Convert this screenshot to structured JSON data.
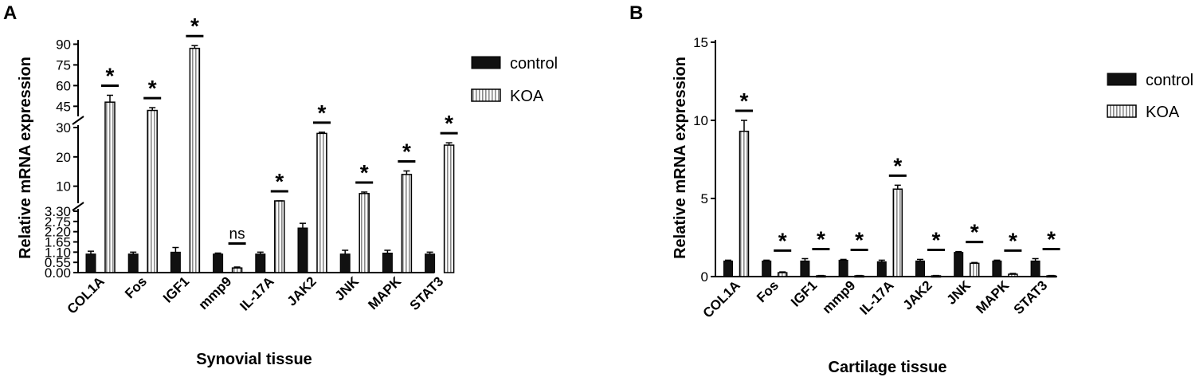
{
  "chart_data": [
    {
      "panel_label": "A",
      "type": "bar",
      "xlabel": "Synovial tissue",
      "ylabel": "Relative mRNA expression",
      "categories": [
        "COL1A",
        "Fos",
        "IGF1",
        "mmp9",
        "IL-17A",
        "JAK2",
        "JNK",
        "MAPK",
        "STAT3"
      ],
      "series": [
        {
          "name": "control",
          "values": [
            1.0,
            1.0,
            1.1,
            1.0,
            1.0,
            2.4,
            1.0,
            1.05,
            1.0
          ],
          "errors": [
            0.15,
            0.1,
            0.25,
            0.05,
            0.1,
            0.25,
            0.2,
            0.15,
            0.1
          ]
        },
        {
          "name": "KOA",
          "values": [
            48,
            42,
            87,
            0.25,
            3.4,
            28,
            7.5,
            14,
            24
          ],
          "errors": [
            5,
            2,
            2,
            0.05,
            0.15,
            0.4,
            0.5,
            1.2,
            0.8
          ]
        }
      ],
      "annotations": [
        "*",
        "*",
        "*",
        "ns",
        "*",
        "*",
        "*",
        "*",
        "*"
      ],
      "y_axis_segments": [
        {
          "range": [
            0,
            3.3
          ],
          "ticks": [
            "0.00",
            "0.55",
            "1.10",
            "1.65",
            "2.20",
            "2.75",
            "3.30"
          ]
        },
        {
          "range": [
            5,
            30
          ],
          "ticks": [
            "10",
            "20",
            "30"
          ]
        },
        {
          "range": [
            40,
            92
          ],
          "ticks": [
            "45",
            "60",
            "75",
            "90"
          ]
        }
      ],
      "legend": {
        "position": "right",
        "entries": [
          "control",
          "KOA"
        ]
      }
    },
    {
      "panel_label": "B",
      "type": "bar",
      "xlabel": "Cartilage tissue",
      "ylabel": "Relative mRNA expression",
      "categories": [
        "COL1A",
        "Fos",
        "IGF1",
        "mmp9",
        "IL-17A",
        "JAK2",
        "JNK",
        "MAPK",
        "STAT3"
      ],
      "series": [
        {
          "name": "control",
          "values": [
            1.0,
            1.0,
            1.0,
            1.05,
            0.95,
            1.0,
            1.55,
            1.0,
            1.0
          ],
          "errors": [
            0.05,
            0.05,
            0.15,
            0.05,
            0.1,
            0.1,
            0.05,
            0.05,
            0.15
          ]
        },
        {
          "name": "KOA",
          "values": [
            9.3,
            0.25,
            0.05,
            0.05,
            5.6,
            0.05,
            0.85,
            0.15,
            0.05
          ],
          "errors": [
            0.7,
            0.05,
            0.02,
            0.02,
            0.25,
            0.02,
            0.05,
            0.05,
            0.02
          ]
        }
      ],
      "annotations": [
        "*",
        "*",
        "*",
        "*",
        "*",
        "*",
        "*",
        "*",
        "*"
      ],
      "ylim": [
        0,
        15
      ],
      "yticks": [
        "0",
        "5",
        "10",
        "15"
      ],
      "legend": {
        "position": "top-right",
        "entries": [
          "control",
          "KOA"
        ]
      }
    }
  ]
}
